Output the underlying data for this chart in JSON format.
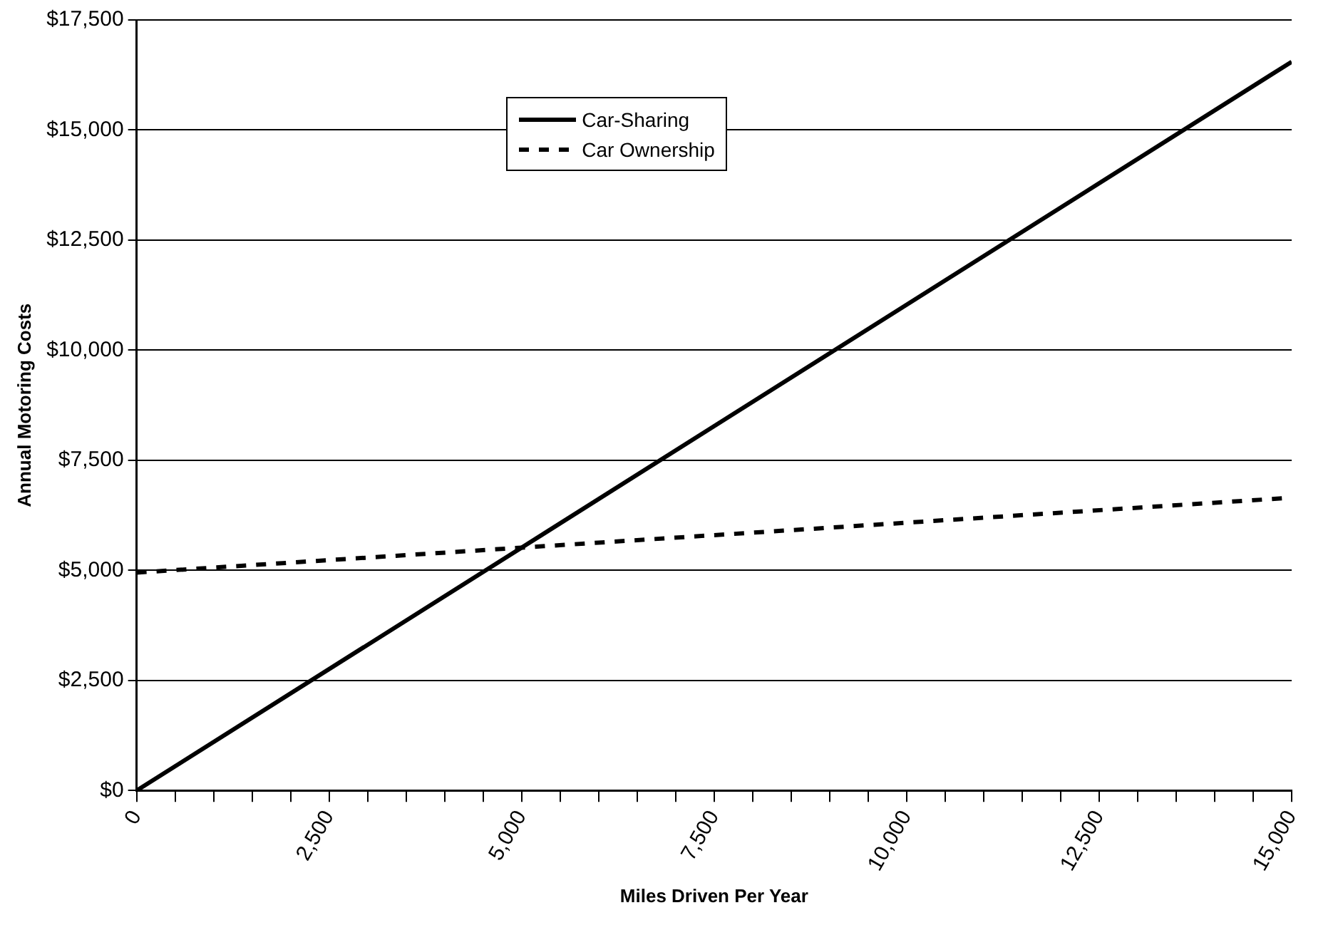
{
  "chart_data": {
    "type": "line",
    "xlabel": "Miles Driven Per Year",
    "ylabel": "Annual Motoring Costs",
    "xlim": [
      0,
      15000
    ],
    "ylim": [
      0,
      17500
    ],
    "xticks": [
      0,
      {
        "value": 500,
        "label": null
      },
      {
        "value": 1000,
        "label": null
      },
      {
        "value": 1500,
        "label": null
      },
      {
        "value": 2000,
        "label": null
      },
      {
        "value": 2500,
        "label": "2,500"
      },
      {
        "value": 3000,
        "label": null
      },
      {
        "value": 3500,
        "label": null
      },
      {
        "value": 4000,
        "label": null
      },
      {
        "value": 4500,
        "label": null
      },
      {
        "value": 5000,
        "label": "5,000"
      },
      {
        "value": 5500,
        "label": null
      },
      {
        "value": 6000,
        "label": null
      },
      {
        "value": 6500,
        "label": null
      },
      {
        "value": 7000,
        "label": null
      },
      {
        "value": 7500,
        "label": "7,500"
      },
      {
        "value": 8000,
        "label": null
      },
      {
        "value": 8500,
        "label": null
      },
      {
        "value": 9000,
        "label": null
      },
      {
        "value": 9500,
        "label": null
      },
      {
        "value": 10000,
        "label": "10,000"
      },
      {
        "value": 10500,
        "label": null
      },
      {
        "value": 11000,
        "label": null
      },
      {
        "value": 11500,
        "label": null
      },
      {
        "value": 12000,
        "label": null
      },
      {
        "value": 12500,
        "label": "12,500"
      },
      {
        "value": 13000,
        "label": null
      },
      {
        "value": 13500,
        "label": null
      },
      {
        "value": 14000,
        "label": null
      },
      {
        "value": 14500,
        "label": null
      },
      {
        "value": 15000,
        "label": "15,000"
      }
    ],
    "yticks": [
      {
        "value": 0,
        "label": "$0"
      },
      {
        "value": 2500,
        "label": "$2,500"
      },
      {
        "value": 5000,
        "label": "$5,000"
      },
      {
        "value": 7500,
        "label": "$7,500"
      },
      {
        "value": 10000,
        "label": "$10,000"
      },
      {
        "value": 12500,
        "label": "$12,500"
      },
      {
        "value": 15000,
        "label": "$15,000"
      },
      {
        "value": 17500,
        "label": "$17,500"
      }
    ],
    "x": [
      0,
      15000
    ],
    "series": [
      {
        "name": "Car-Sharing",
        "color": "#000000",
        "values": [
          0,
          16550
        ],
        "line_style": "solid"
      },
      {
        "name": "Car Ownership",
        "color": "#000000",
        "values": [
          4950,
          6650
        ],
        "line_style": "dashed"
      }
    ],
    "grid": "y",
    "legend": "top",
    "marker": "none"
  }
}
